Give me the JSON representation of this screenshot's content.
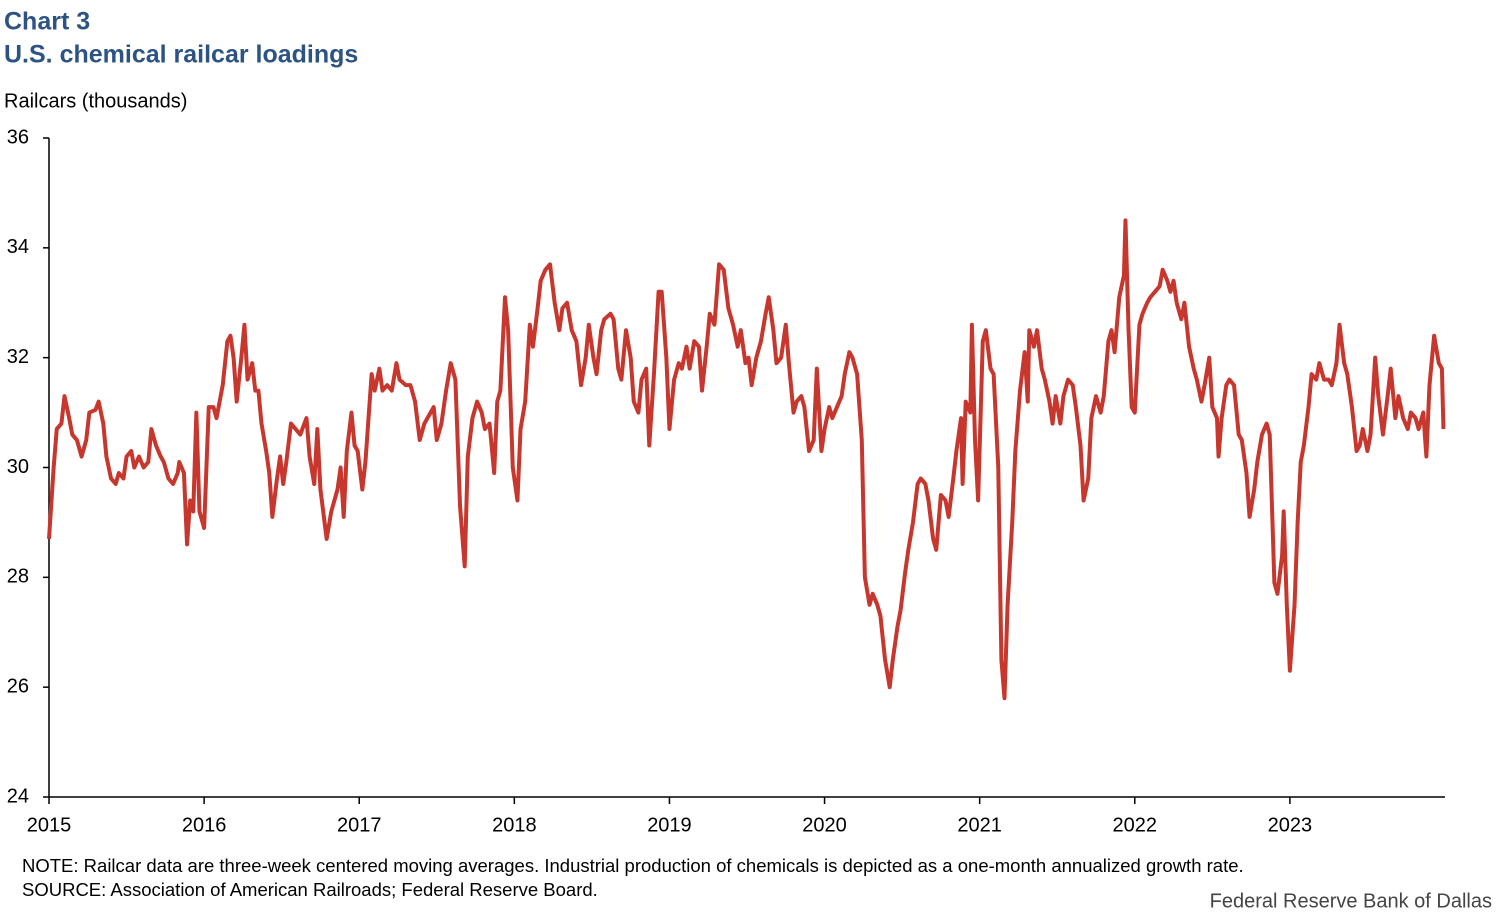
{
  "chart_data": {
    "type": "line",
    "title": "Chart 3",
    "subtitle": "U.S. chemical railcar loadings",
    "y_label": "Railcars (thousands)",
    "note": "NOTE: Railcar data are three-week  centered  moving averages.  Industrial  production  of chemicals  is depicted  as a one-month  annualized  growth  rate.",
    "source": "SOURCE: Association of American Railroads;  Federal Reserve Board.",
    "credit": "Federal Reserve Bank of Dallas",
    "color": "#c8372d",
    "xlim": [
      2015,
      2024
    ],
    "xticks": [
      2015,
      2016,
      2017,
      2018,
      2019,
      2020,
      2021,
      2022,
      2023
    ],
    "ylim": [
      24,
      36
    ],
    "yticks": [
      24,
      26,
      28,
      30,
      32,
      34,
      36
    ],
    "grid": false,
    "x": [
      2015.0,
      2015.03,
      2015.05,
      2015.08,
      2015.1,
      2015.13,
      2015.15,
      2015.18,
      2015.21,
      2015.24,
      2015.26,
      2015.3,
      2015.32,
      2015.35,
      2015.37,
      2015.4,
      2015.43,
      2015.45,
      2015.48,
      2015.5,
      2015.53,
      2015.55,
      2015.58,
      2015.61,
      2015.64,
      2015.66,
      2015.69,
      2015.72,
      2015.74,
      2015.77,
      2015.8,
      2015.83,
      2015.84,
      2015.87,
      2015.89,
      2015.91,
      2015.93,
      2015.95,
      2015.97,
      2016.0,
      2016.03,
      2016.06,
      2016.08,
      2016.12,
      2016.15,
      2016.17,
      2016.19,
      2016.21,
      2016.24,
      2016.26,
      2016.28,
      2016.31,
      2016.33,
      2016.35,
      2016.37,
      2016.4,
      2016.42,
      2016.44,
      2016.47,
      2016.49,
      2016.51,
      2016.53,
      2016.56,
      2016.59,
      2016.62,
      2016.66,
      2016.68,
      2016.71,
      2016.73,
      2016.75,
      2016.79,
      2016.82,
      2016.86,
      2016.88,
      2016.9,
      2016.92,
      2016.95,
      2016.97,
      2016.99,
      2017.02,
      2017.04,
      2017.08,
      2017.1,
      2017.13,
      2017.15,
      2017.18,
      2017.21,
      2017.24,
      2017.26,
      2017.3,
      2017.33,
      2017.36,
      2017.39,
      2017.42,
      2017.44,
      2017.48,
      2017.5,
      2017.53,
      2017.56,
      2017.59,
      2017.62,
      2017.65,
      2017.68,
      2017.7,
      2017.73,
      2017.76,
      2017.79,
      2017.81,
      2017.84,
      2017.87,
      2017.89,
      2017.91,
      2017.94,
      2017.96,
      2017.99,
      2018.02,
      2018.04,
      2018.07,
      2018.1,
      2018.12,
      2018.15,
      2018.17,
      2018.2,
      2018.23,
      2018.26,
      2018.29,
      2018.31,
      2018.34,
      2018.37,
      2018.4,
      2018.43,
      2018.46,
      2018.48,
      2018.51,
      2018.53,
      2018.56,
      2018.58,
      2018.62,
      2018.64,
      2018.67,
      2018.69,
      2018.72,
      2018.75,
      2018.77,
      2018.8,
      2018.82,
      2018.85,
      2018.87,
      2018.9,
      2018.93,
      2018.95,
      2018.98,
      2019.0,
      2019.03,
      2019.06,
      2019.08,
      2019.11,
      2019.13,
      2019.16,
      2019.19,
      2019.21,
      2019.24,
      2019.26,
      2019.29,
      2019.32,
      2019.35,
      2019.38,
      2019.41,
      2019.44,
      2019.46,
      2019.49,
      2019.51,
      2019.53,
      2019.56,
      2019.59,
      2019.62,
      2019.64,
      2019.67,
      2019.69,
      2019.72,
      2019.75,
      2019.77,
      2019.8,
      2019.82,
      2019.85,
      2019.87,
      2019.9,
      2019.93,
      2019.95,
      2019.98,
      2020.0,
      2020.03,
      2020.05,
      2020.08,
      2020.11,
      2020.13,
      2020.16,
      2020.18,
      2020.21,
      2020.24,
      2020.26,
      2020.29,
      2020.31,
      2020.34,
      2020.36,
      2020.39,
      2020.42,
      2020.44,
      2020.47,
      2020.49,
      2020.52,
      2020.54,
      2020.57,
      2020.6,
      2020.62,
      2020.65,
      2020.67,
      2020.7,
      2020.72,
      2020.75,
      2020.78,
      2020.8,
      2020.83,
      2020.85,
      2020.88,
      2020.89,
      2020.91,
      2020.94,
      2020.95,
      2020.97,
      2020.99,
      2021.02,
      2021.04,
      2021.07,
      2021.09,
      2021.12,
      2021.14,
      2021.16,
      2021.18,
      2021.21,
      2021.23,
      2021.26,
      2021.29,
      2021.31,
      2021.32,
      2021.35,
      2021.37,
      2021.4,
      2021.42,
      2021.45,
      2021.47,
      2021.49,
      2021.52,
      2021.54,
      2021.57,
      2021.6,
      2021.62,
      2021.65,
      2021.67,
      2021.7,
      2021.72,
      2021.75,
      2021.78,
      2021.8,
      2021.83,
      2021.85,
      2021.87,
      2021.9,
      2021.93,
      2021.94,
      2021.96,
      2021.98,
      2022.0,
      2022.03,
      2022.05,
      2022.08,
      2022.1,
      2022.13,
      2022.16,
      2022.18,
      2022.21,
      2022.23,
      2022.25,
      2022.27,
      2022.3,
      2022.32,
      2022.35,
      2022.38,
      2022.4,
      2022.43,
      2022.45,
      2022.48,
      2022.5,
      2022.53,
      2022.54,
      2022.56,
      2022.59,
      2022.61,
      2022.64,
      2022.67,
      2022.69,
      2022.72,
      2022.74,
      2022.77,
      2022.79,
      2022.82,
      2022.85,
      2022.87,
      2022.9,
      2022.92,
      2022.95,
      2022.96,
      2022.98,
      2023.0,
      2023.03,
      2023.05,
      2023.07,
      2023.09,
      2023.12,
      2023.14,
      2023.17,
      2023.19,
      2023.22,
      2023.25,
      2023.27,
      2023.3,
      2023.32,
      2023.35,
      2023.37,
      2023.4,
      2023.43,
      2023.45,
      2023.47,
      2023.5,
      2023.52,
      2023.55,
      2023.57,
      2023.6,
      2023.63,
      2023.65,
      2023.68,
      2023.7,
      2023.73,
      2023.76,
      2023.78,
      2023.81,
      2023.83,
      2023.86,
      2023.88,
      2023.9,
      2023.93,
      2023.96,
      2023.98,
      2023.99
    ],
    "values": [
      28.7,
      30.0,
      30.7,
      30.8,
      31.3,
      30.9,
      30.6,
      30.5,
      30.2,
      30.5,
      31.0,
      31.05,
      31.2,
      30.8,
      30.2,
      29.8,
      29.7,
      29.9,
      29.8,
      30.2,
      30.3,
      30.0,
      30.2,
      30.0,
      30.1,
      30.7,
      30.4,
      30.2,
      30.1,
      29.8,
      29.7,
      29.9,
      30.1,
      29.9,
      28.6,
      29.4,
      29.2,
      31.0,
      29.2,
      28.9,
      31.1,
      31.1,
      30.9,
      31.5,
      32.3,
      32.4,
      32.0,
      31.2,
      32.0,
      32.6,
      31.6,
      31.9,
      31.4,
      31.4,
      30.8,
      30.3,
      29.9,
      29.1,
      29.8,
      30.2,
      29.7,
      30.1,
      30.8,
      30.7,
      30.6,
      30.9,
      30.2,
      29.7,
      30.7,
      29.6,
      28.7,
      29.2,
      29.6,
      30.0,
      29.1,
      30.3,
      31.0,
      30.4,
      30.3,
      29.6,
      30.1,
      31.7,
      31.4,
      31.8,
      31.4,
      31.5,
      31.4,
      31.9,
      31.6,
      31.5,
      31.5,
      31.2,
      30.5,
      30.8,
      30.9,
      31.1,
      30.5,
      30.8,
      31.4,
      31.9,
      31.6,
      29.3,
      28.2,
      30.2,
      30.9,
      31.2,
      31.0,
      30.7,
      30.8,
      29.9,
      31.2,
      31.4,
      33.1,
      32.5,
      30.0,
      29.4,
      30.7,
      31.2,
      32.6,
      32.2,
      32.9,
      33.4,
      33.6,
      33.7,
      33.0,
      32.5,
      32.9,
      33.0,
      32.5,
      32.3,
      31.5,
      32.0,
      32.6,
      32.0,
      31.7,
      32.5,
      32.7,
      32.8,
      32.7,
      31.8,
      31.6,
      32.5,
      32.0,
      31.2,
      31.0,
      31.6,
      31.8,
      30.4,
      31.7,
      33.2,
      33.2,
      32.0,
      30.7,
      31.6,
      31.9,
      31.8,
      32.2,
      31.8,
      32.3,
      32.2,
      31.4,
      32.2,
      32.8,
      32.6,
      33.7,
      33.6,
      32.9,
      32.6,
      32.2,
      32.5,
      31.9,
      32.0,
      31.5,
      32.0,
      32.3,
      32.8,
      33.1,
      32.5,
      31.9,
      32.0,
      32.6,
      31.9,
      31.0,
      31.2,
      31.3,
      31.1,
      30.3,
      30.5,
      31.8,
      30.3,
      30.7,
      31.1,
      30.9,
      31.1,
      31.3,
      31.7,
      32.1,
      32.0,
      31.7,
      30.5,
      28.0,
      27.5,
      27.7,
      27.5,
      27.3,
      26.5,
      26.0,
      26.5,
      27.1,
      27.4,
      28.1,
      28.5,
      29.0,
      29.7,
      29.8,
      29.7,
      29.4,
      28.7,
      28.5,
      29.5,
      29.4,
      29.1,
      29.8,
      30.3,
      30.9,
      29.7,
      31.2,
      31.0,
      32.6,
      30.5,
      29.4,
      32.3,
      32.5,
      31.8,
      31.7,
      30.0,
      26.5,
      25.8,
      27.5,
      29.0,
      30.3,
      31.4,
      32.1,
      31.2,
      32.5,
      32.2,
      32.5,
      31.8,
      31.6,
      31.2,
      30.8,
      31.3,
      30.8,
      31.3,
      31.6,
      31.5,
      31.1,
      30.4,
      29.4,
      29.8,
      30.9,
      31.3,
      31.0,
      31.3,
      32.3,
      32.5,
      32.1,
      33.1,
      33.5,
      34.5,
      32.5,
      31.1,
      31.0,
      32.6,
      32.8,
      33.0,
      33.1,
      33.2,
      33.3,
      33.6,
      33.4,
      33.2,
      33.4,
      33.0,
      32.7,
      33.0,
      32.2,
      31.8,
      31.6,
      31.2,
      31.5,
      32.0,
      31.1,
      30.9,
      30.2,
      30.9,
      31.5,
      31.6,
      31.5,
      30.6,
      30.5,
      29.9,
      29.1,
      29.6,
      30.1,
      30.6,
      30.8,
      30.6,
      27.9,
      27.7,
      28.4,
      29.2,
      27.5,
      26.3,
      27.5,
      29.0,
      30.1,
      30.4,
      31.1,
      31.7,
      31.6,
      31.9,
      31.6,
      31.6,
      31.5,
      31.9,
      32.6,
      31.9,
      31.7,
      31.1,
      30.3,
      30.4,
      30.7,
      30.3,
      30.6,
      32.0,
      31.3,
      30.6,
      31.3,
      31.8,
      30.9,
      31.3,
      30.9,
      30.7,
      31.0,
      30.9,
      30.7,
      31.0,
      30.2,
      31.5,
      32.4,
      31.9,
      31.8,
      30.7
    ]
  }
}
